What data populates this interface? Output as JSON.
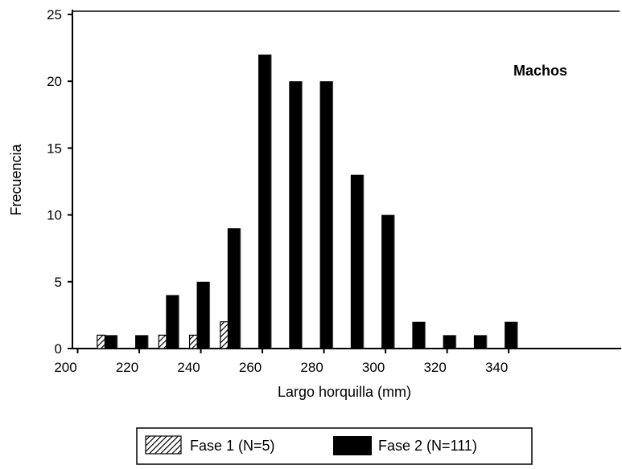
{
  "chart_data": {
    "type": "bar",
    "xlabel": "Largo horquilla (mm)",
    "ylabel": "Frecuencia",
    "annotation": "Machos",
    "xlim": [
      180,
      360
    ],
    "ylim": [
      0,
      25
    ],
    "x_ticks": [
      "200",
      "220",
      "240",
      "260",
      "280",
      "300",
      "320",
      "340"
    ],
    "y_ticks": [
      "0",
      "5",
      "10",
      "15",
      "20",
      "25"
    ],
    "bin_width": 10,
    "x": [
      210,
      220,
      230,
      240,
      250,
      260,
      270,
      280,
      290,
      300,
      310,
      320,
      330,
      340
    ],
    "series": [
      {
        "name": "Fase 1 (N=5)",
        "values": [
          1,
          0,
          1,
          1,
          2,
          0,
          0,
          0,
          0,
          0,
          0,
          0,
          0,
          0
        ],
        "pattern": "hatched"
      },
      {
        "name": "Fase 2 (N=111)",
        "values": [
          1,
          1,
          4,
          5,
          9,
          22,
          20,
          20,
          13,
          10,
          2,
          1,
          1,
          2
        ],
        "color": "#000000"
      }
    ],
    "legend_position": "bottom",
    "grid": false
  }
}
